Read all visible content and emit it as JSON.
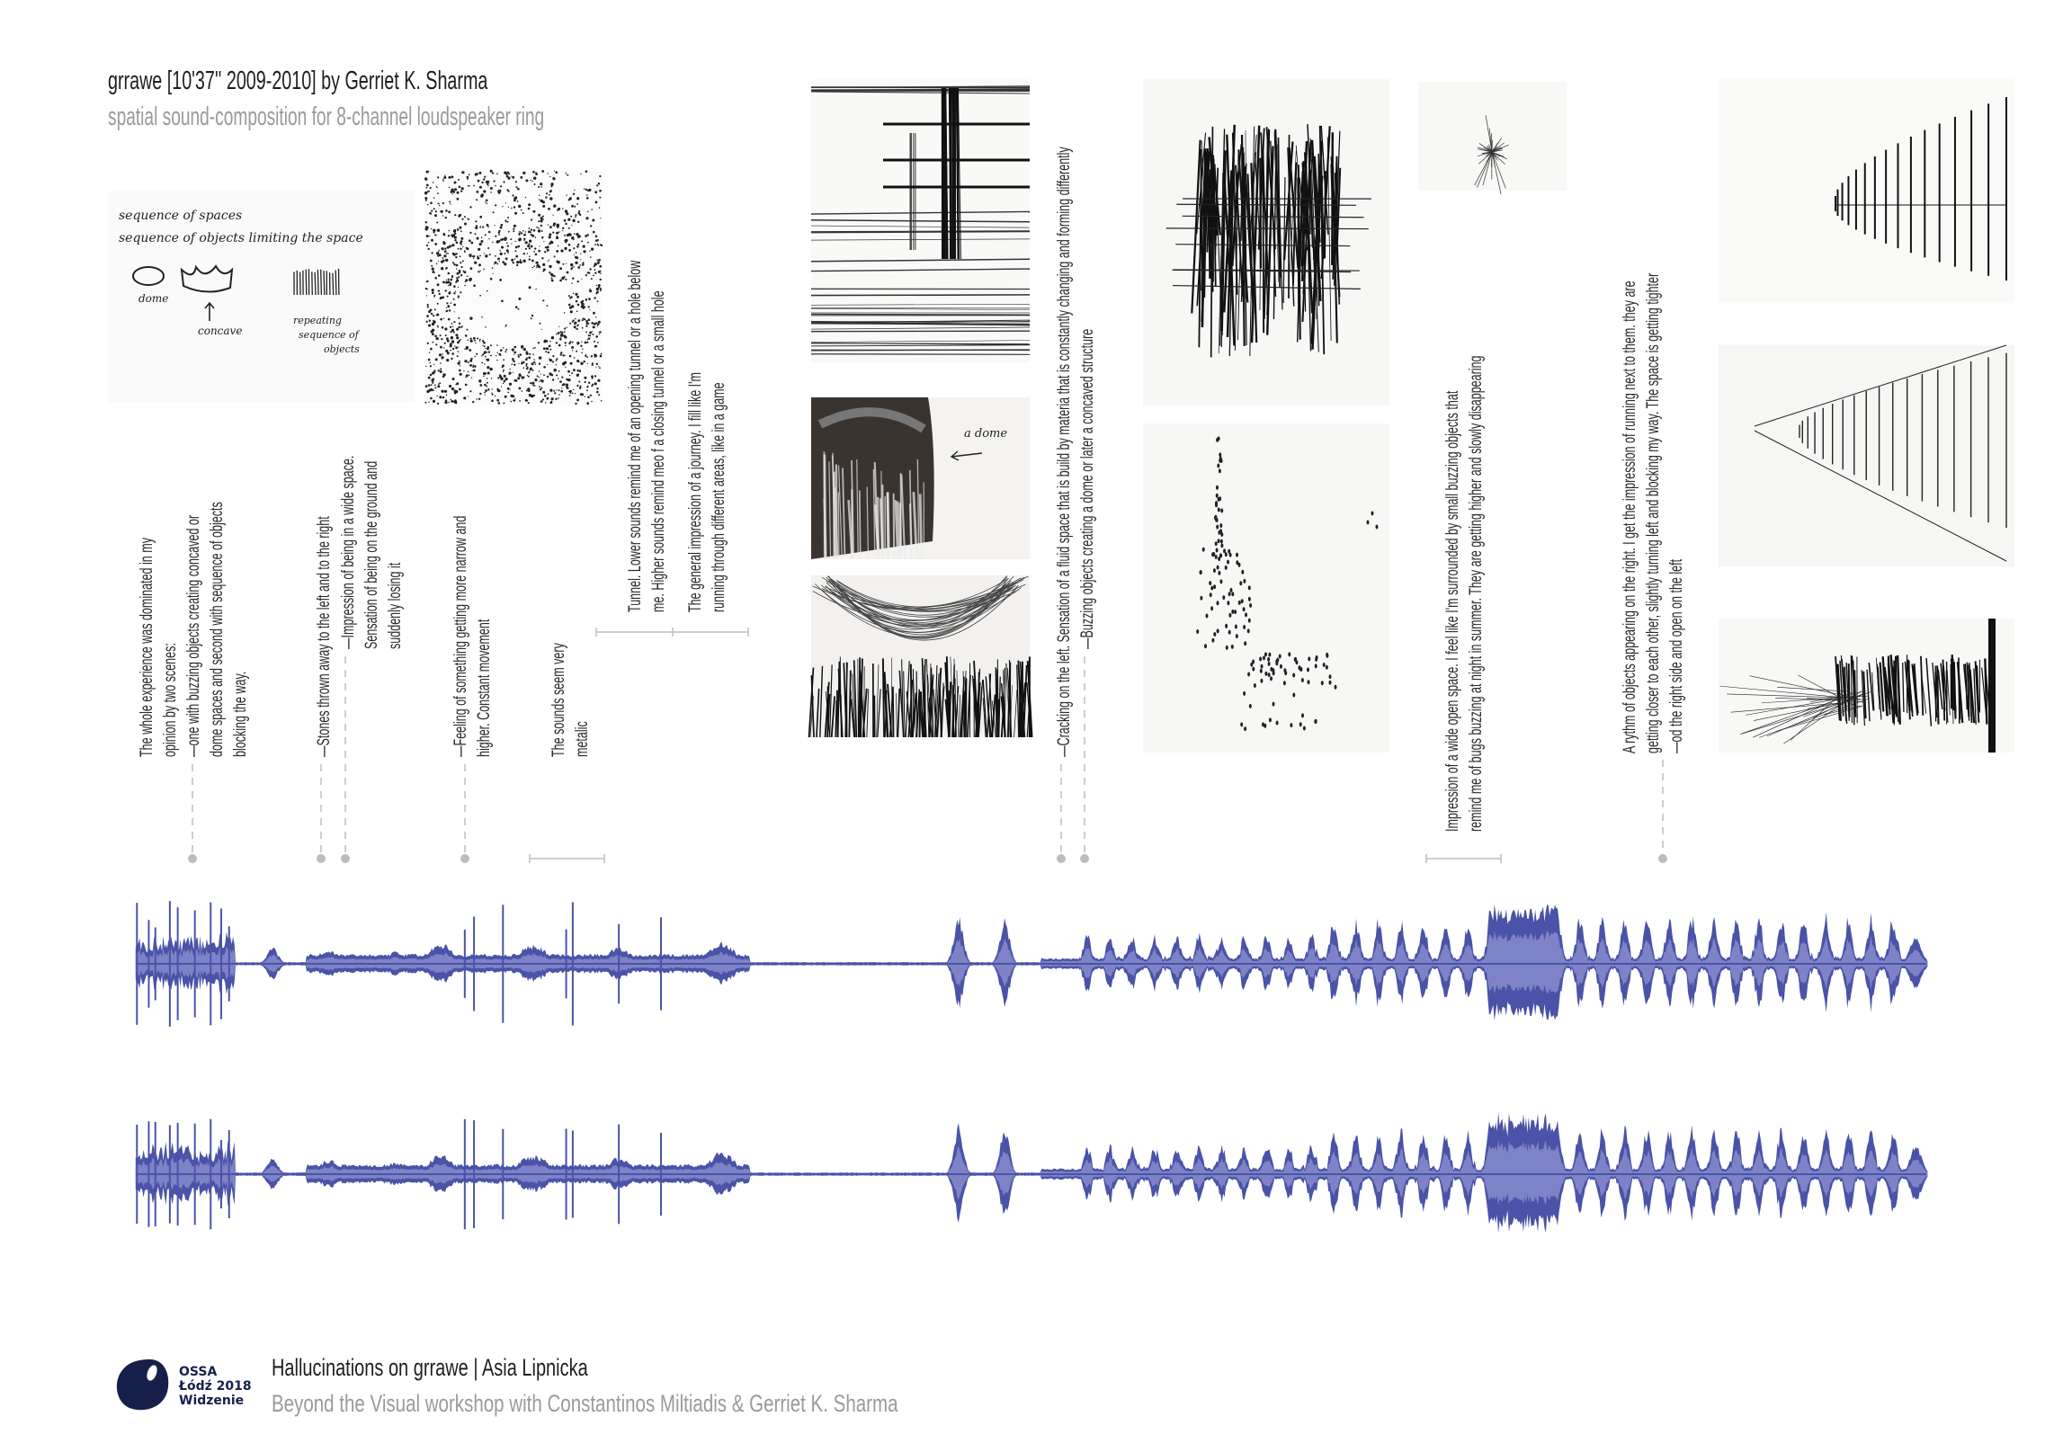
{
  "header": {
    "title": "grrawe [10'37'' 2009-2010] by Gerriet K. Sharma",
    "subtitle": "spatial sound-composition for 8-channel loudspeaker ring"
  },
  "sketch_labels": {
    "notes_line1": "sequence of spaces",
    "notes_line2": "sequence of objects limiting the space",
    "dome": "dome",
    "concave": "concave",
    "repeating_1": "repeating",
    "repeating_2": "sequence of",
    "repeating_3": "objects",
    "a_dome": "a dome"
  },
  "annotations": [
    {
      "lines": [
        "The  whole  experience  was  dominated  in  my",
        "opinion by two scenes:",
        "—one  with  buzzing  objects  creating  concaved  or",
        "dome spaces and second with sequence of objects",
        "blocking the way."
      ]
    },
    {
      "lines": [
        "—Stones thrown away to the left and to the right"
      ]
    },
    {
      "lines": [
        "—Impression of being in a wide space.",
        "Sensation of being on the ground and",
        "suddenly losing it"
      ]
    },
    {
      "lines": [
        "—Feeling of something getting more narrow and",
        "higher. Constant movement"
      ]
    },
    {
      "lines": [
        "The sounds seem very",
        "metalic"
      ]
    },
    {
      "lines": [
        "Tunnel. Lower sounds remind me of an opening tunnel or a hole below",
        "me. Higher sounds remind meo f a closing tunnel or a small hole"
      ]
    },
    {
      "lines": [
        "The  general  impression  of  a  journey.  I  fill  like  I'm",
        "running through different areas, like in a game"
      ]
    },
    {
      "lines": [
        "—Cracking on the left. Sensation of a fluid space that is build by materia that is constantly changing and forming differently"
      ]
    },
    {
      "lines": [
        "—Buzzing objects creating a dome or later a concaved structure"
      ]
    },
    {
      "lines": [
        "Impression of   a wide open space.  I feel like I'm surrounded by small buzzing objects that",
        "remind me of bugs buzzing at night in summer. They are getting higher and slowly disappearing"
      ]
    },
    {
      "lines": [
        "A rythm of objects appearing on the right. I get the impression of running next to them. they are",
        "getting closer to each other, slightly turning left and blocking my way. The space is getting tighter",
        "—od the right side and open on the left"
      ]
    }
  ],
  "footer": {
    "logo_lines": [
      "OSSA",
      "Łódź 2018",
      "Widzenie"
    ],
    "title": "Hallucinations on grrawe | Asia Lipnicka",
    "subtitle": "Beyond the Visual workshop with Constantinos Miltiadis & Gerriet K. Sharma"
  },
  "colors": {
    "waveform": "#4a53a7",
    "waveform_inner": "#7d83c6",
    "leader_lines": "#bdbdbd",
    "logo": "#16204a",
    "subtitle": "#9a9a9a"
  }
}
